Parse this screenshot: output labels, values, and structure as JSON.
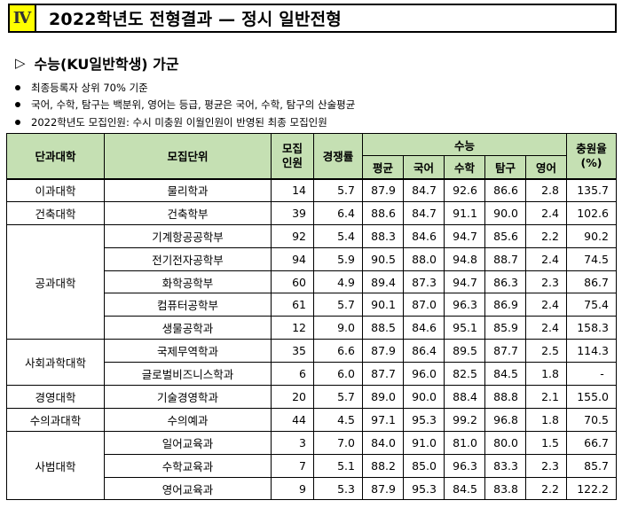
{
  "section_number": "Ⅳ",
  "title": "2022학년도 전형결과 — 정시 일반전형",
  "subheading": "수능(KU일반학생) 가군",
  "subheading_marker": "▷",
  "notes": [
    "최종등록자 상위 70% 기준",
    "국어, 수학, 탐구는 백분위, 영어는 등급, 평균은 국어, 수학, 탐구의 산술평균",
    "2022학년도 모집인원: 수시 미충원 이월인원이 반영된 최종 모집인원"
  ],
  "headers": {
    "college": "단과대학",
    "unit": "모집단위",
    "quota_line1": "모집",
    "quota_line2": "인원",
    "competition": "경쟁률",
    "suneung": "수능",
    "avg": "평균",
    "korean": "국어",
    "math": "수학",
    "inquiry": "탐구",
    "english": "영어",
    "fill_rate_line1": "충원율",
    "fill_rate_line2": "(%)"
  },
  "colleges": [
    {
      "name": "이과대학",
      "rows": [
        {
          "unit": "물리학과",
          "quota": "14",
          "competition": "5.7",
          "avg": "87.9",
          "korean": "84.7",
          "math": "92.6",
          "inquiry": "86.6",
          "english": "2.8",
          "fill_rate": "135.7"
        }
      ]
    },
    {
      "name": "건축대학",
      "rows": [
        {
          "unit": "건축학부",
          "quota": "39",
          "competition": "6.4",
          "avg": "88.6",
          "korean": "84.7",
          "math": "91.1",
          "inquiry": "90.0",
          "english": "2.4",
          "fill_rate": "102.6"
        }
      ]
    },
    {
      "name": "공과대학",
      "rows": [
        {
          "unit": "기계항공공학부",
          "quota": "92",
          "competition": "5.4",
          "avg": "88.3",
          "korean": "84.6",
          "math": "94.7",
          "inquiry": "85.6",
          "english": "2.2",
          "fill_rate": "90.2"
        },
        {
          "unit": "전기전자공학부",
          "quota": "94",
          "competition": "5.9",
          "avg": "90.5",
          "korean": "88.0",
          "math": "94.8",
          "inquiry": "88.7",
          "english": "2.4",
          "fill_rate": "74.5"
        },
        {
          "unit": "화학공학부",
          "quota": "60",
          "competition": "4.9",
          "avg": "89.4",
          "korean": "87.3",
          "math": "94.7",
          "inquiry": "86.3",
          "english": "2.3",
          "fill_rate": "86.7"
        },
        {
          "unit": "컴퓨터공학부",
          "quota": "61",
          "competition": "5.7",
          "avg": "90.1",
          "korean": "87.0",
          "math": "96.3",
          "inquiry": "86.9",
          "english": "2.4",
          "fill_rate": "75.4"
        },
        {
          "unit": "생물공학과",
          "quota": "12",
          "competition": "9.0",
          "avg": "88.5",
          "korean": "84.6",
          "math": "95.1",
          "inquiry": "85.9",
          "english": "2.4",
          "fill_rate": "158.3"
        }
      ]
    },
    {
      "name": "사회과학대학",
      "rows": [
        {
          "unit": "국제무역학과",
          "quota": "35",
          "competition": "6.6",
          "avg": "87.9",
          "korean": "86.4",
          "math": "89.5",
          "inquiry": "87.7",
          "english": "2.5",
          "fill_rate": "114.3"
        },
        {
          "unit": "글로벌비즈니스학과",
          "quota": "6",
          "competition": "6.0",
          "avg": "87.7",
          "korean": "96.0",
          "math": "82.5",
          "inquiry": "84.5",
          "english": "1.8",
          "fill_rate": "-"
        }
      ]
    },
    {
      "name": "경영대학",
      "rows": [
        {
          "unit": "기술경영학과",
          "quota": "20",
          "competition": "5.7",
          "avg": "89.0",
          "korean": "90.0",
          "math": "88.4",
          "inquiry": "88.8",
          "english": "2.1",
          "fill_rate": "155.0"
        }
      ]
    },
    {
      "name": "수의과대학",
      "rows": [
        {
          "unit": "수의예과",
          "quota": "44",
          "competition": "4.5",
          "avg": "97.1",
          "korean": "95.3",
          "math": "99.2",
          "inquiry": "96.8",
          "english": "1.8",
          "fill_rate": "70.5"
        }
      ]
    },
    {
      "name": "사범대학",
      "rows": [
        {
          "unit": "일어교육과",
          "quota": "3",
          "competition": "7.0",
          "avg": "84.0",
          "korean": "91.0",
          "math": "81.0",
          "inquiry": "80.0",
          "english": "1.5",
          "fill_rate": "66.7"
        },
        {
          "unit": "수학교육과",
          "quota": "7",
          "competition": "5.1",
          "avg": "88.2",
          "korean": "85.0",
          "math": "96.3",
          "inquiry": "83.3",
          "english": "2.3",
          "fill_rate": "85.7"
        },
        {
          "unit": "영어교육과",
          "quota": "9",
          "competition": "5.3",
          "avg": "87.9",
          "korean": "95.3",
          "math": "84.5",
          "inquiry": "83.8",
          "english": "2.2",
          "fill_rate": "122.2"
        }
      ]
    }
  ],
  "colors": {
    "header_bg": "#c5e0b3",
    "section_badge": "#ffff00"
  }
}
